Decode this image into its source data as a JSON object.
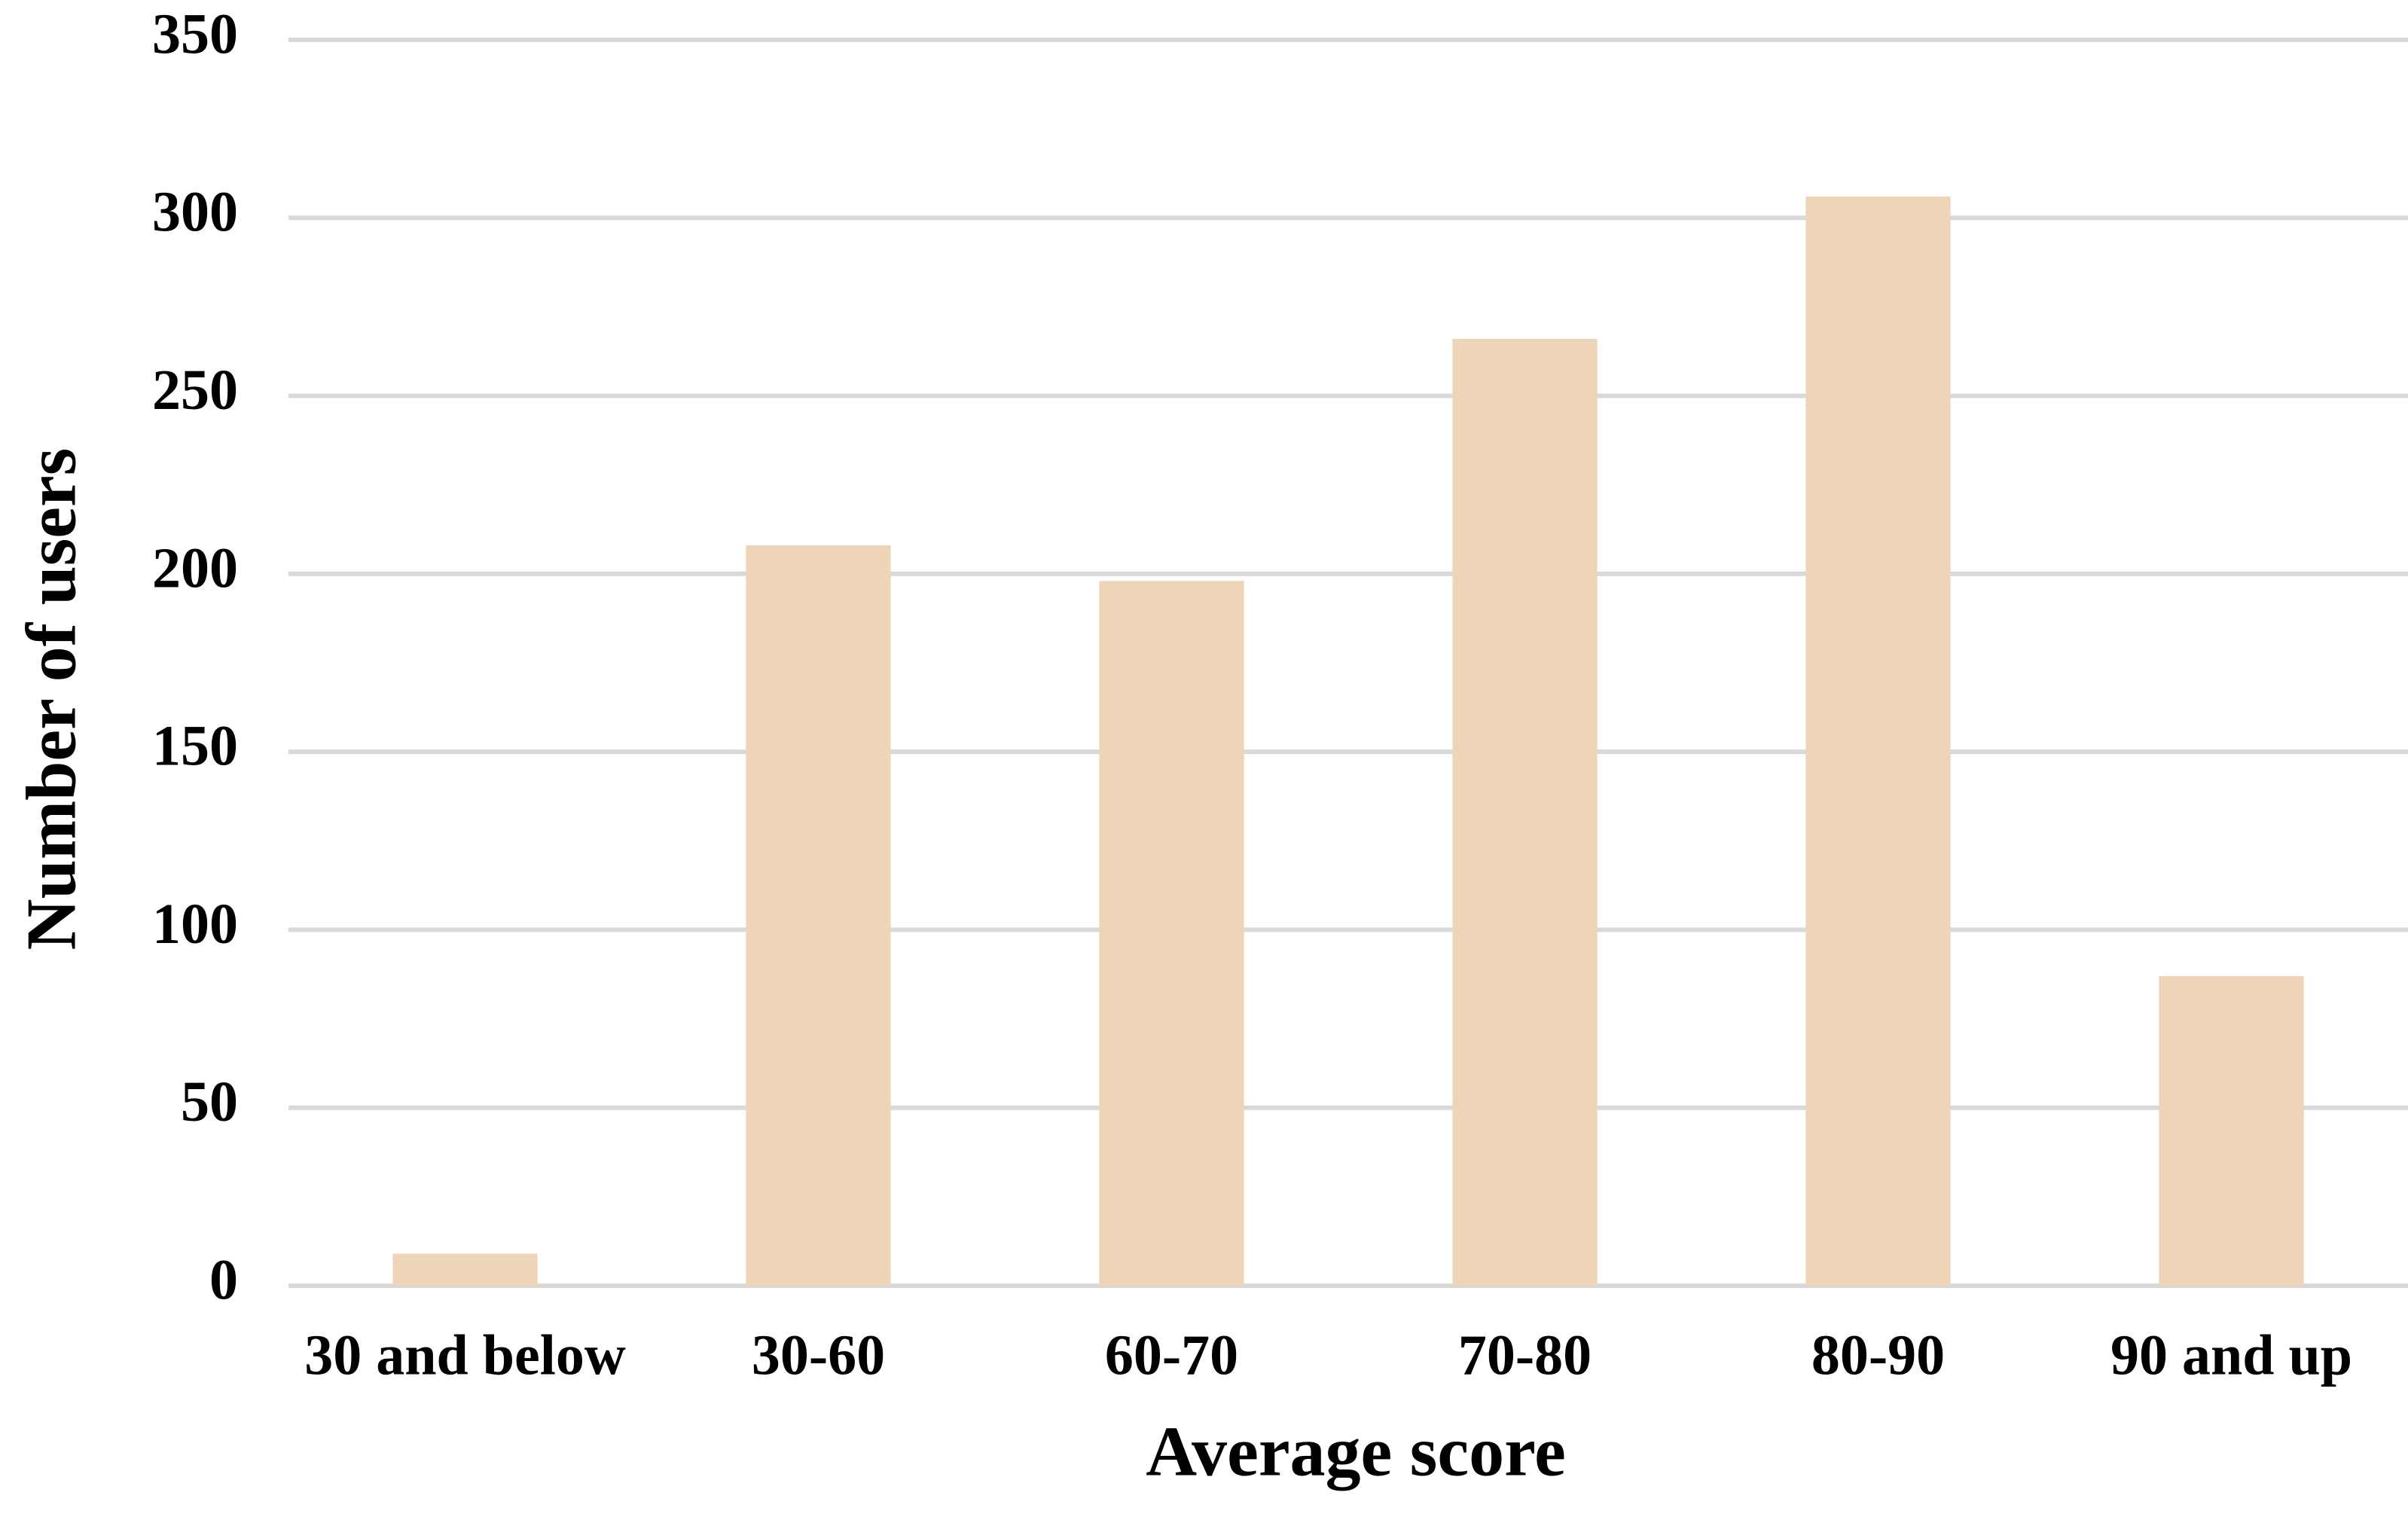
{
  "chart_data": {
    "type": "bar",
    "x_label": "Average score",
    "y_label": "Number of users",
    "categories": [
      "30 and below",
      "30-60",
      "60-70",
      "70-80",
      "80-90",
      "90 and up"
    ],
    "values": [
      9,
      208,
      198,
      266,
      306,
      87
    ],
    "color": "#eed5b7",
    "ylim": [
      0,
      350
    ],
    "yticks": [
      0,
      50,
      100,
      150,
      200,
      250,
      300,
      350
    ],
    "grid": true
  }
}
